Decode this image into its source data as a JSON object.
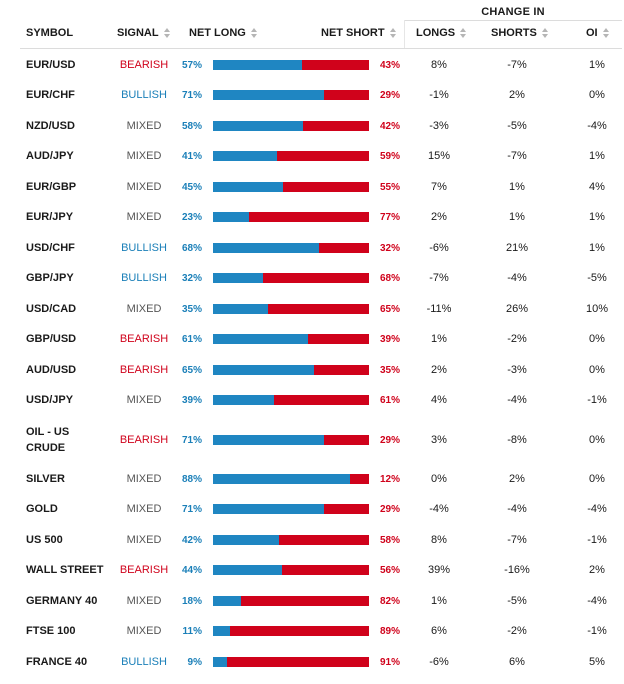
{
  "header": {
    "change_in": "CHANGE IN",
    "symbol": "SYMBOL",
    "signal": "SIGNAL",
    "net_long": "NET LONG",
    "net_short": "NET SHORT",
    "longs": "LONGS",
    "shorts": "SHORTS",
    "oi": "OI"
  },
  "colors": {
    "long": "#1f86c2",
    "short": "#d0021b",
    "bullish": "#1a7fb8",
    "bearish": "#d0021b",
    "mixed": "#555555"
  },
  "rows": [
    {
      "symbol": [
        "EUR/USD"
      ],
      "signal": "BEARISH",
      "net_long": "57%",
      "net_short": "43%",
      "longs": "8%",
      "shorts": "-7%",
      "oi": "1%"
    },
    {
      "symbol": [
        "EUR/CHF"
      ],
      "signal": "BULLISH",
      "net_long": "71%",
      "net_short": "29%",
      "longs": "-1%",
      "shorts": "2%",
      "oi": "0%"
    },
    {
      "symbol": [
        "NZD/USD"
      ],
      "signal": "MIXED",
      "net_long": "58%",
      "net_short": "42%",
      "longs": "-3%",
      "shorts": "-5%",
      "oi": "-4%"
    },
    {
      "symbol": [
        "AUD/JPY"
      ],
      "signal": "MIXED",
      "net_long": "41%",
      "net_short": "59%",
      "longs": "15%",
      "shorts": "-7%",
      "oi": "1%"
    },
    {
      "symbol": [
        "EUR/GBP"
      ],
      "signal": "MIXED",
      "net_long": "45%",
      "net_short": "55%",
      "longs": "7%",
      "shorts": "1%",
      "oi": "4%"
    },
    {
      "symbol": [
        "EUR/JPY"
      ],
      "signal": "MIXED",
      "net_long": "23%",
      "net_short": "77%",
      "longs": "2%",
      "shorts": "1%",
      "oi": "1%"
    },
    {
      "symbol": [
        "USD/CHF"
      ],
      "signal": "BULLISH",
      "net_long": "68%",
      "net_short": "32%",
      "longs": "-6%",
      "shorts": "21%",
      "oi": "1%"
    },
    {
      "symbol": [
        "GBP/JPY"
      ],
      "signal": "BULLISH",
      "net_long": "32%",
      "net_short": "68%",
      "longs": "-7%",
      "shorts": "-4%",
      "oi": "-5%"
    },
    {
      "symbol": [
        "USD/CAD"
      ],
      "signal": "MIXED",
      "net_long": "35%",
      "net_short": "65%",
      "longs": "-11%",
      "shorts": "26%",
      "oi": "10%"
    },
    {
      "symbol": [
        "GBP/USD"
      ],
      "signal": "BEARISH",
      "net_long": "61%",
      "net_short": "39%",
      "longs": "1%",
      "shorts": "-2%",
      "oi": "0%"
    },
    {
      "symbol": [
        "AUD/USD"
      ],
      "signal": "BEARISH",
      "net_long": "65%",
      "net_short": "35%",
      "longs": "2%",
      "shorts": "-3%",
      "oi": "0%"
    },
    {
      "symbol": [
        "USD/JPY"
      ],
      "signal": "MIXED",
      "net_long": "39%",
      "net_short": "61%",
      "longs": "4%",
      "shorts": "-4%",
      "oi": "-1%"
    },
    {
      "symbol": [
        "OIL - US",
        "CRUDE"
      ],
      "signal": "BEARISH",
      "net_long": "71%",
      "net_short": "29%",
      "longs": "3%",
      "shorts": "-8%",
      "oi": "0%"
    },
    {
      "symbol": [
        "SILVER"
      ],
      "signal": "MIXED",
      "net_long": "88%",
      "net_short": "12%",
      "longs": "0%",
      "shorts": "2%",
      "oi": "0%"
    },
    {
      "symbol": [
        "GOLD"
      ],
      "signal": "MIXED",
      "net_long": "71%",
      "net_short": "29%",
      "longs": "-4%",
      "shorts": "-4%",
      "oi": "-4%"
    },
    {
      "symbol": [
        "US 500"
      ],
      "signal": "MIXED",
      "net_long": "42%",
      "net_short": "58%",
      "longs": "8%",
      "shorts": "-7%",
      "oi": "-1%"
    },
    {
      "symbol": [
        "WALL STREET"
      ],
      "signal": "BEARISH",
      "net_long": "44%",
      "net_short": "56%",
      "longs": "39%",
      "shorts": "-16%",
      "oi": "2%"
    },
    {
      "symbol": [
        "GERMANY 40"
      ],
      "signal": "MIXED",
      "net_long": "18%",
      "net_short": "82%",
      "longs": "1%",
      "shorts": "-5%",
      "oi": "-4%"
    },
    {
      "symbol": [
        "FTSE 100"
      ],
      "signal": "MIXED",
      "net_long": "11%",
      "net_short": "89%",
      "longs": "6%",
      "shorts": "-2%",
      "oi": "-1%"
    },
    {
      "symbol": [
        "FRANCE 40"
      ],
      "signal": "BULLISH",
      "net_long": "9%",
      "net_short": "91%",
      "longs": "-6%",
      "shorts": "6%",
      "oi": "5%"
    }
  ]
}
